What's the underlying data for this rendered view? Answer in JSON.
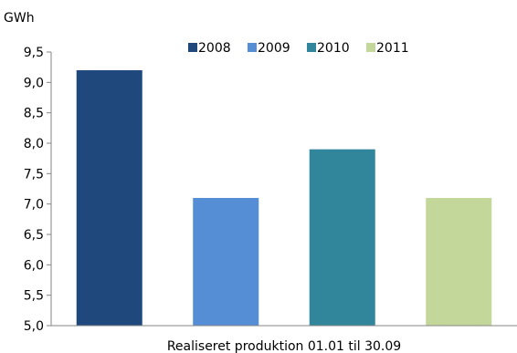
{
  "chart_data": {
    "type": "bar",
    "ylabel": "GWh",
    "xlabel": "Realiseret produktion 01.01 til 30.09",
    "categories": [
      "2008",
      "2009",
      "2010",
      "2011"
    ],
    "values": [
      9.2,
      7.1,
      7.9,
      7.1
    ],
    "colors": [
      "#1f497d",
      "#558ed5",
      "#31869b",
      "#c4d79b"
    ],
    "ylim": [
      5.0,
      9.5
    ],
    "yticks": [
      "5,0",
      "5,5",
      "6,0",
      "6,5",
      "7,0",
      "7,5",
      "8,0",
      "8,5",
      "9,0",
      "9,5"
    ],
    "grid": false,
    "legend_position": "top-center"
  }
}
